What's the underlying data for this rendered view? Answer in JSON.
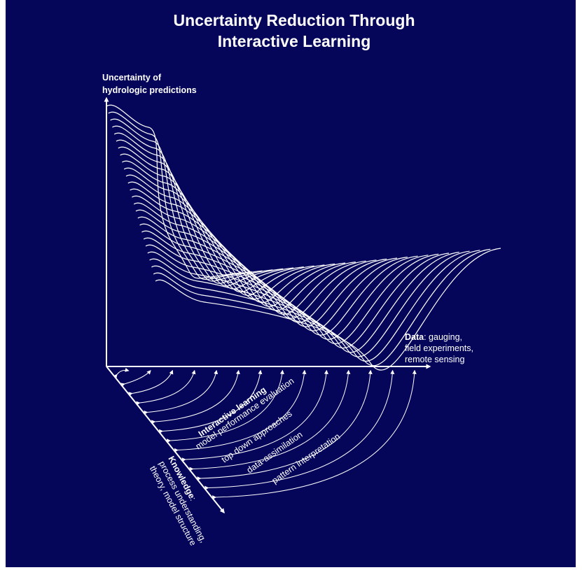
{
  "title": {
    "line1": "Uncertainty Reduction Through",
    "line2": "Interactive Learning"
  },
  "y_axis": {
    "line1": "Uncertainty of",
    "line2": "hydrologic predictions"
  },
  "x_axis": {
    "bold": "Data",
    "line1_rest": ": gauging,",
    "line2": "field experiments,",
    "line3": "remote sensing"
  },
  "z_axis": {
    "bold": "Knowledge",
    "line1_rest": ":",
    "line2": "process understanding,",
    "line3": "theory, model structure"
  },
  "interactive_learning": {
    "heading": "Interactive learning",
    "items": [
      "model performance evaluation",
      "top down approaches",
      "data-assimilation",
      "pattern interpretation"
    ]
  },
  "colors": {
    "background": "#05065a",
    "foreground": "#ffffff"
  }
}
